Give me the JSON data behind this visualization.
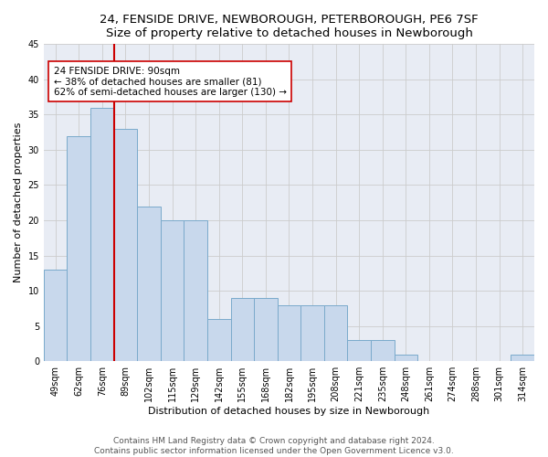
{
  "title1": "24, FENSIDE DRIVE, NEWBOROUGH, PETERBOROUGH, PE6 7SF",
  "title2": "Size of property relative to detached houses in Newborough",
  "xlabel": "Distribution of detached houses by size in Newborough",
  "ylabel": "Number of detached properties",
  "categories": [
    "49sqm",
    "62sqm",
    "76sqm",
    "89sqm",
    "102sqm",
    "115sqm",
    "129sqm",
    "142sqm",
    "155sqm",
    "168sqm",
    "182sqm",
    "195sqm",
    "208sqm",
    "221sqm",
    "235sqm",
    "248sqm",
    "261sqm",
    "274sqm",
    "288sqm",
    "301sqm",
    "314sqm"
  ],
  "values": [
    13,
    32,
    36,
    33,
    22,
    20,
    20,
    6,
    9,
    9,
    8,
    8,
    8,
    3,
    3,
    1,
    0,
    0,
    0,
    0,
    1
  ],
  "bar_color": "#c8d8ec",
  "bar_edge_color": "#7aaacb",
  "highlight_line_color": "#cc0000",
  "annotation_box_color": "#cc0000",
  "annotation_box_fill": "#ffffff",
  "ylim": [
    0,
    45
  ],
  "yticks": [
    0,
    5,
    10,
    15,
    20,
    25,
    30,
    35,
    40,
    45
  ],
  "grid_color": "#cccccc",
  "bg_color": "#e8ecf4",
  "fig_bg_color": "#ffffff",
  "footer1": "Contains HM Land Registry data © Crown copyright and database right 2024.",
  "footer2": "Contains public sector information licensed under the Open Government Licence v3.0.",
  "title_fontsize": 9.5,
  "subtitle_fontsize": 9,
  "label_fontsize": 8,
  "tick_fontsize": 7,
  "annotation_fontsize": 7.5,
  "footer_fontsize": 6.5
}
